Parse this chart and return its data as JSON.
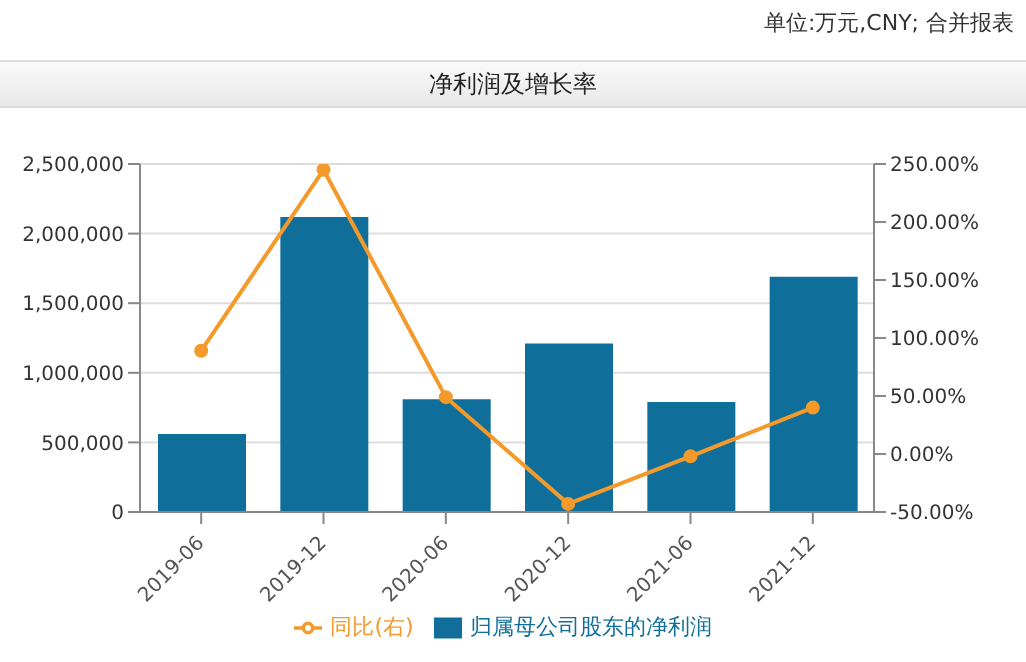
{
  "chart_data": {
    "type": "bar",
    "title": "净利润及增长率",
    "annotations": [
      "单位:万元,CNY; 合并报表"
    ],
    "categories": [
      "2019-06",
      "2019-12",
      "2020-06",
      "2020-12",
      "2021-06",
      "2021-12"
    ],
    "series": [
      {
        "name": "归属母公司股东的净利润",
        "color": "#0f6f9a",
        "values": [
          560000,
          2120000,
          810000,
          1210000,
          790000,
          1690000
        ]
      },
      {
        "name": "同比(右)",
        "type": "line",
        "axis": "y2",
        "color": "#f39a2b",
        "values": [
          89,
          245,
          49,
          -43,
          -2,
          40
        ]
      }
    ],
    "ylim": [
      0,
      2500000
    ],
    "yticks": [
      {
        "value": 0,
        "label": "0"
      },
      {
        "value": 500000,
        "label": "500,000"
      },
      {
        "value": 1000000,
        "label": "1,000,000"
      },
      {
        "value": 1500000,
        "label": "1,500,000"
      },
      {
        "value": 2000000,
        "label": "2,000,000"
      },
      {
        "value": 2500000,
        "label": "2,500,000"
      }
    ],
    "y2lim": [
      -50,
      250
    ],
    "y2ticks": [
      {
        "value": -50,
        "label": "-50.00%"
      },
      {
        "value": 0,
        "label": "0.00%"
      },
      {
        "value": 50,
        "label": "50.00%"
      },
      {
        "value": 100,
        "label": "100.00%"
      },
      {
        "value": 150,
        "label": "150.00%"
      },
      {
        "value": 200,
        "label": "200.00%"
      },
      {
        "value": 250,
        "label": "250.00%"
      }
    ],
    "grid": "y",
    "legend": "bottom",
    "marker": "circle"
  }
}
